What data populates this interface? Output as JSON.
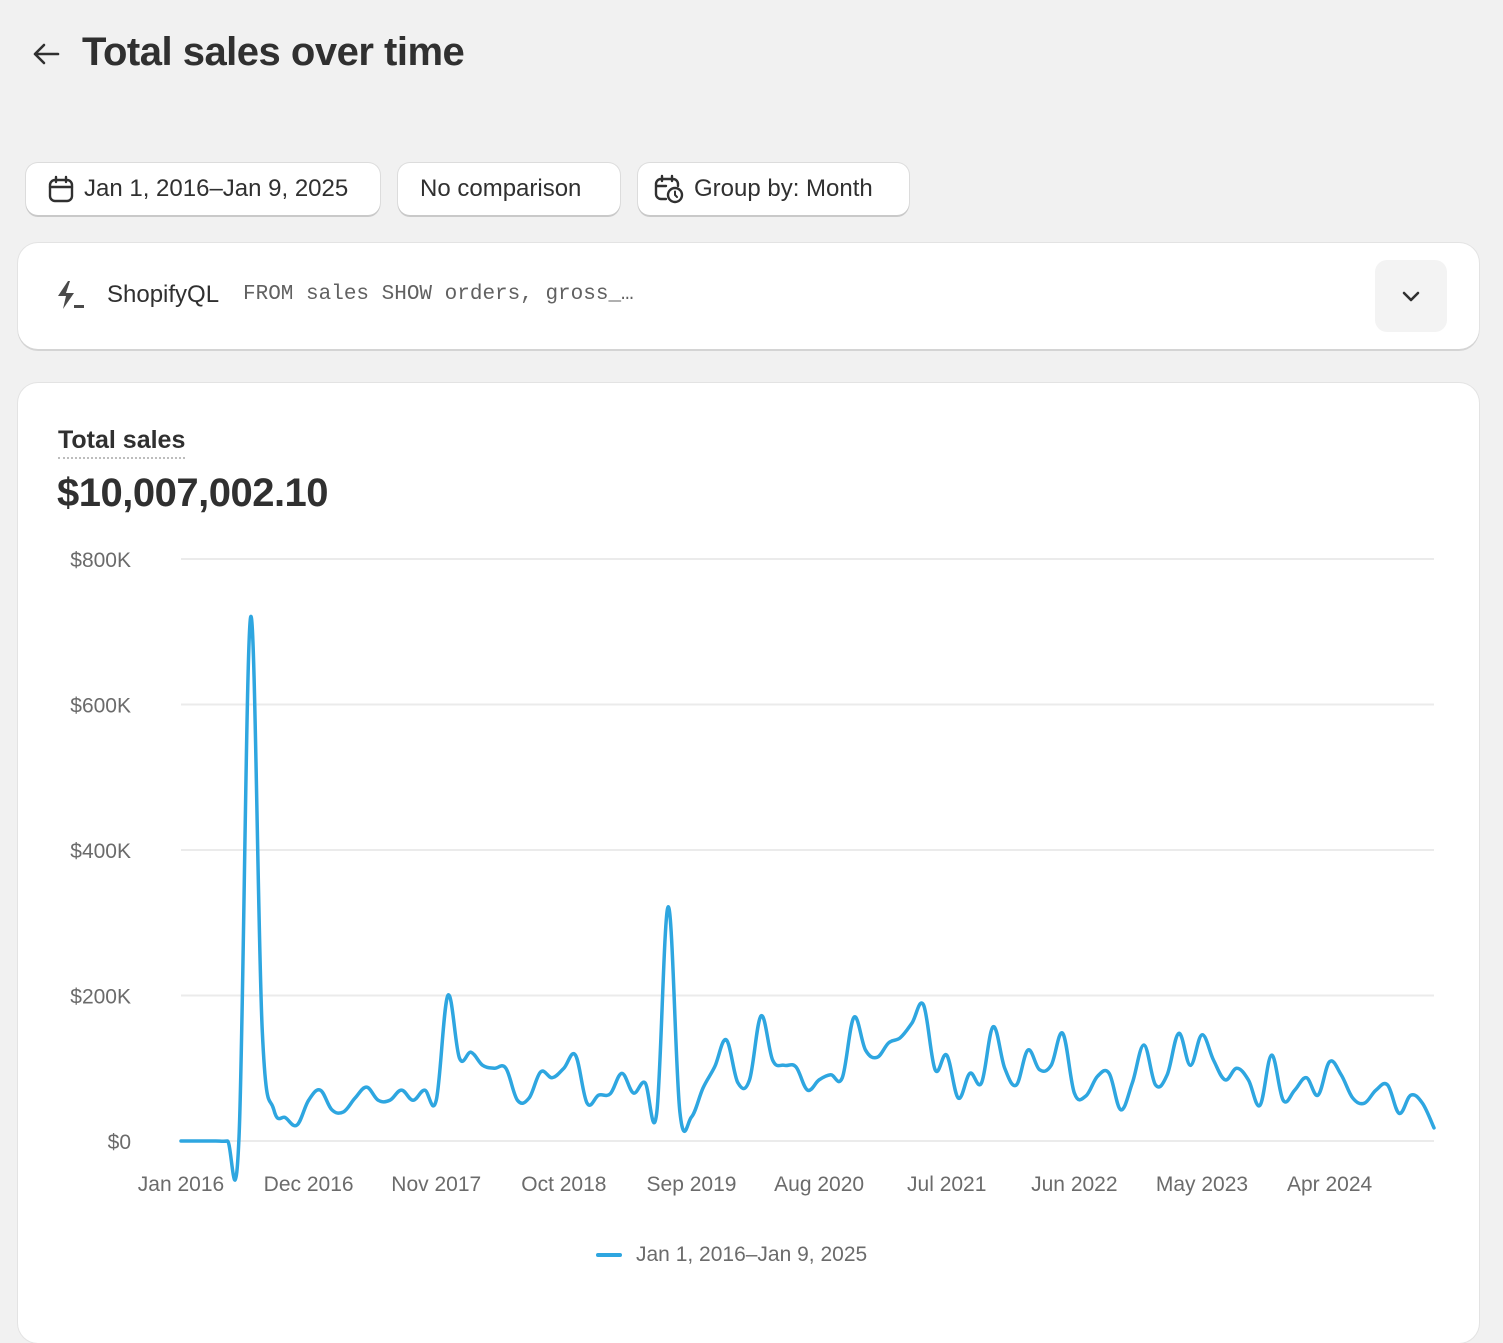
{
  "header": {
    "title": "Total sales over time",
    "back_icon": "arrow-left-icon"
  },
  "filters": {
    "date_range": "Jan 1, 2016–Jan 9, 2025",
    "comparison": "No comparison",
    "group_by": "Group by: Month"
  },
  "query": {
    "label": "ShopifyQL",
    "text": "FROM sales SHOW orders, gross_…",
    "icon": "lightning-icon"
  },
  "metric": {
    "label": "Total sales",
    "value": "$10,007,002.10"
  },
  "colors": {
    "series": "#2ea6e0",
    "background": "#f1f1f1",
    "grid": "#ebebeb"
  },
  "chart_data": {
    "type": "line",
    "ylim": [
      0,
      800000
    ],
    "y_ticks": [
      0,
      200000,
      400000,
      600000,
      800000
    ],
    "y_tick_labels": [
      "$0",
      "$200K",
      "$400K",
      "$600K",
      "$800K"
    ],
    "x_tick_labels": [
      "Jan 2016",
      "Dec 2016",
      "Nov 2017",
      "Oct 2018",
      "Sep 2019",
      "Aug 2020",
      "Jul 2021",
      "Jun 2022",
      "May 2023",
      "Apr 2024"
    ],
    "grid": true,
    "legend": "bottom",
    "categories": [
      "Jan 2016",
      "Feb 2016",
      "Mar 2016",
      "Apr 2016",
      "May 2016",
      "Jun 2016",
      "Jul 2016",
      "Aug 2016",
      "Sep 2016",
      "Oct 2016",
      "Nov 2016",
      "Dec 2016",
      "Jan 2017",
      "Feb 2017",
      "Mar 2017",
      "Apr 2017",
      "May 2017",
      "Jun 2017",
      "Jul 2017",
      "Aug 2017",
      "Sep 2017",
      "Oct 2017",
      "Nov 2017",
      "Dec 2017",
      "Jan 2018",
      "Feb 2018",
      "Mar 2018",
      "Apr 2018",
      "May 2018",
      "Jun 2018",
      "Jul 2018",
      "Aug 2018",
      "Sep 2018",
      "Oct 2018",
      "Nov 2018",
      "Dec 2018",
      "Jan 2019",
      "Feb 2019",
      "Mar 2019",
      "Apr 2019",
      "May 2019",
      "Jun 2019",
      "Jul 2019",
      "Aug 2019",
      "Sep 2019",
      "Oct 2019",
      "Nov 2019",
      "Dec 2019",
      "Jan 2020",
      "Feb 2020",
      "Mar 2020",
      "Apr 2020",
      "May 2020",
      "Jun 2020",
      "Jul 2020",
      "Aug 2020",
      "Sep 2020",
      "Oct 2020",
      "Nov 2020",
      "Dec 2020",
      "Jan 2021",
      "Feb 2021",
      "Mar 2021",
      "Apr 2021",
      "May 2021",
      "Jun 2021",
      "Jul 2021",
      "Aug 2021",
      "Sep 2021",
      "Oct 2021",
      "Nov 2021",
      "Dec 2021",
      "Jan 2022",
      "Feb 2022",
      "Mar 2022",
      "Apr 2022",
      "May 2022",
      "Jun 2022",
      "Jul 2022",
      "Aug 2022",
      "Sep 2022",
      "Oct 2022",
      "Nov 2022",
      "Dec 2022",
      "Jan 2023",
      "Feb 2023",
      "Mar 2023",
      "Apr 2023",
      "May 2023",
      "Jun 2023",
      "Jul 2023",
      "Aug 2023",
      "Sep 2023",
      "Oct 2023",
      "Nov 2023",
      "Dec 2023",
      "Jan 2024",
      "Feb 2024",
      "Mar 2024",
      "Apr 2024",
      "May 2024",
      "Jun 2024",
      "Jul 2024",
      "Aug 2024",
      "Sep 2024",
      "Oct 2024",
      "Nov 2024",
      "Dec 2024",
      "Jan 2025"
    ],
    "series": [
      {
        "name": "Jan 1, 2016–Jan 9, 2025",
        "values": [
          0,
          0,
          0,
          0,
          0,
          5000,
          720000,
          153000,
          43000,
          32000,
          22000,
          56000,
          70000,
          43000,
          40000,
          59000,
          74000,
          56000,
          56000,
          70000,
          56000,
          70000,
          56000,
          200000,
          114000,
          122000,
          104000,
          100000,
          100000,
          56000,
          59000,
          95000,
          87000,
          100000,
          118000,
          52000,
          63000,
          65000,
          93000,
          66000,
          80000,
          38000,
          322000,
          40000,
          33000,
          73000,
          102000,
          139000,
          80000,
          84000,
          172000,
          111000,
          104000,
          102000,
          70000,
          84000,
          91000,
          87000,
          170000,
          125000,
          115000,
          135000,
          142000,
          162000,
          187000,
          98000,
          118000,
          59000,
          93000,
          80000,
          157000,
          100000,
          77000,
          125000,
          98000,
          104000,
          148000,
          66000,
          62000,
          89000,
          93000,
          43000,
          80000,
          132000,
          77000,
          91000,
          148000,
          104000,
          146000,
          111000,
          84000,
          100000,
          84000,
          49000,
          118000,
          56000,
          70000,
          87000,
          63000,
          109000,
          91000,
          59000,
          52000,
          70000,
          77000,
          38000,
          63000,
          52000,
          18000
        ]
      }
    ]
  }
}
